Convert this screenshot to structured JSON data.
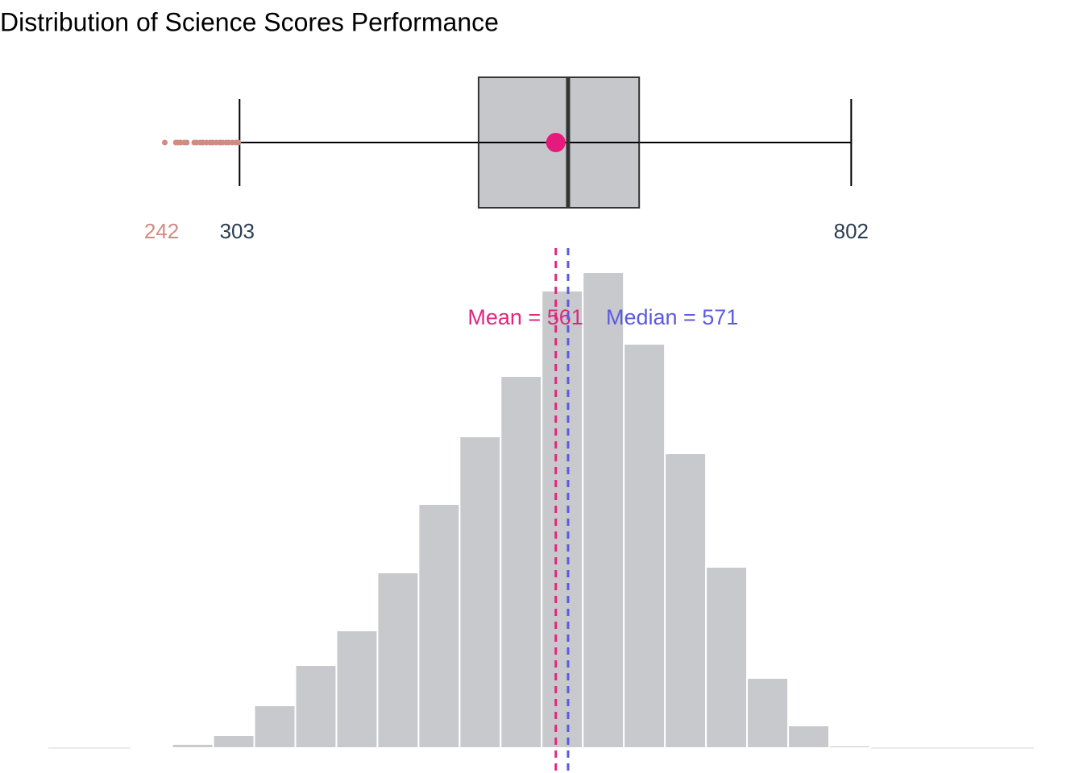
{
  "title": "Distribution of Science Scores Performance",
  "chart_data": [
    {
      "type": "boxplot",
      "orientation": "horizontal",
      "whisker_low": 303,
      "q1": 498,
      "median": 571,
      "q3": 629,
      "whisker_high": 802,
      "mean": 561,
      "outliers": [
        242,
        251,
        253,
        255,
        258,
        260,
        266,
        268,
        271,
        273,
        276,
        279,
        281,
        284,
        287,
        289,
        292,
        294,
        297,
        300,
        302
      ],
      "xlim": [
        147,
        951
      ],
      "box_color": "#c6c7cb",
      "line_color": "#333333",
      "mean_color": "#e6197d",
      "outlier_color": "#d08b82",
      "label_color": "#2c3e50"
    },
    {
      "type": "histogram",
      "bins": [
        214.5,
        248,
        281.5,
        315,
        348.5,
        382,
        415.5,
        449,
        482.5,
        516,
        549.5,
        583,
        616.5,
        650,
        683.5,
        717,
        750.5,
        784,
        817.5
      ],
      "counts": [
        1,
        5,
        16,
        53,
        103,
        146,
        218,
        303,
        387,
        462,
        568,
        591,
        502,
        366,
        225,
        87,
        28,
        3
      ],
      "xlim": [
        147,
        951
      ],
      "ylim": [
        0,
        600
      ],
      "color": "#c8c9cc",
      "reference_lines": [
        {
          "value": 561,
          "label": "Mean = 561",
          "color": "#e0267f"
        },
        {
          "value": 571,
          "label": "Median = 571",
          "color": "#5b5be0"
        }
      ]
    }
  ]
}
